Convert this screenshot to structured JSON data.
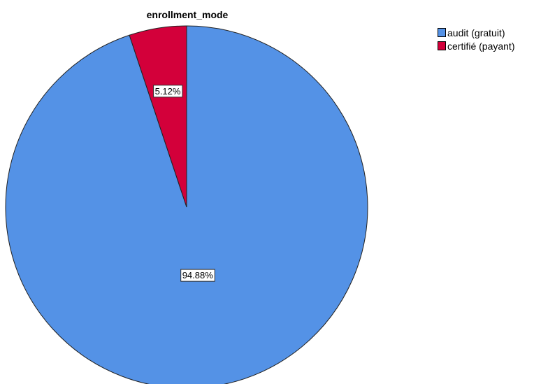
{
  "chart_data": {
    "type": "pie",
    "title": "enrollment_mode",
    "slices": [
      {
        "label": "audit (gratuit)",
        "value": 94.88,
        "display": "94.88%",
        "color": "#5492e6"
      },
      {
        "label": "certifié (payant)",
        "value": 5.12,
        "display": "5.12%",
        "color": "#d3003a"
      }
    ],
    "legend_position": "top-right"
  }
}
